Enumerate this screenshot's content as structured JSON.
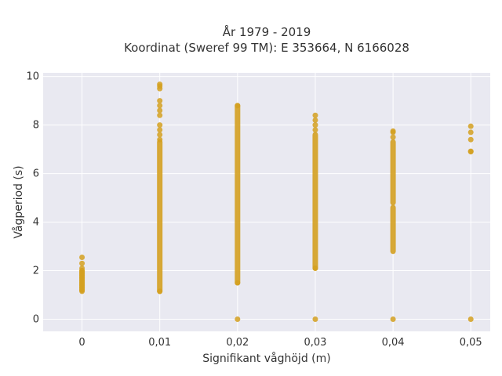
{
  "chart_data": {
    "type": "scatter",
    "title_line1": "År 1979 - 2019",
    "title_line2": "Koordinat (Sweref 99 TM): E 353664, N 6166028",
    "xlabel": "Signifikant våghöjd (m)",
    "ylabel": "Vågperiod (s)",
    "xlim": [
      -0.005,
      0.0525
    ],
    "ylim": [
      -0.5,
      10.15
    ],
    "xticks": [
      0,
      0.01,
      0.02,
      0.03,
      0.04,
      0.05
    ],
    "xtick_labels": [
      "0",
      "0,01",
      "0,02",
      "0,03",
      "0,04",
      "0,05"
    ],
    "yticks": [
      0,
      2,
      4,
      6,
      8,
      10
    ],
    "ytick_labels": [
      "0",
      "2",
      "4",
      "6",
      "8",
      "10"
    ],
    "grid": true,
    "point_color": "#d4a020",
    "background": "#e9e9f1",
    "series": [
      {
        "x": 0,
        "continuous_ranges": [
          [
            1.2,
            2.0
          ]
        ],
        "points": [
          1.15,
          1.2,
          1.3,
          1.4,
          1.5,
          1.6,
          1.7,
          1.8,
          1.9,
          2.0,
          2.1,
          2.3,
          2.55
        ]
      },
      {
        "x": 0.01,
        "continuous_ranges": [
          [
            1.15,
            7.3
          ]
        ],
        "points": [
          1.15,
          7.4,
          7.6,
          7.8,
          8.0,
          8.4,
          8.6,
          8.8,
          9.0,
          9.5,
          9.6,
          9.68
        ]
      },
      {
        "x": 0.02,
        "continuous_ranges": [
          [
            1.5,
            8.8
          ]
        ],
        "points": [
          0.0,
          1.5,
          8.8
        ]
      },
      {
        "x": 0.03,
        "continuous_ranges": [
          [
            2.1,
            7.6
          ]
        ],
        "points": [
          0.0,
          2.1,
          7.8,
          8.0,
          8.2,
          8.4
        ]
      },
      {
        "x": 0.04,
        "continuous_ranges": [
          [
            2.8,
            4.6
          ],
          [
            4.8,
            7.3
          ]
        ],
        "points": [
          0.0,
          7.5,
          7.7,
          7.75
        ]
      },
      {
        "x": 0.05,
        "continuous_ranges": [],
        "points": [
          0.0,
          6.9,
          6.92,
          7.4,
          7.7,
          7.95
        ]
      }
    ]
  }
}
